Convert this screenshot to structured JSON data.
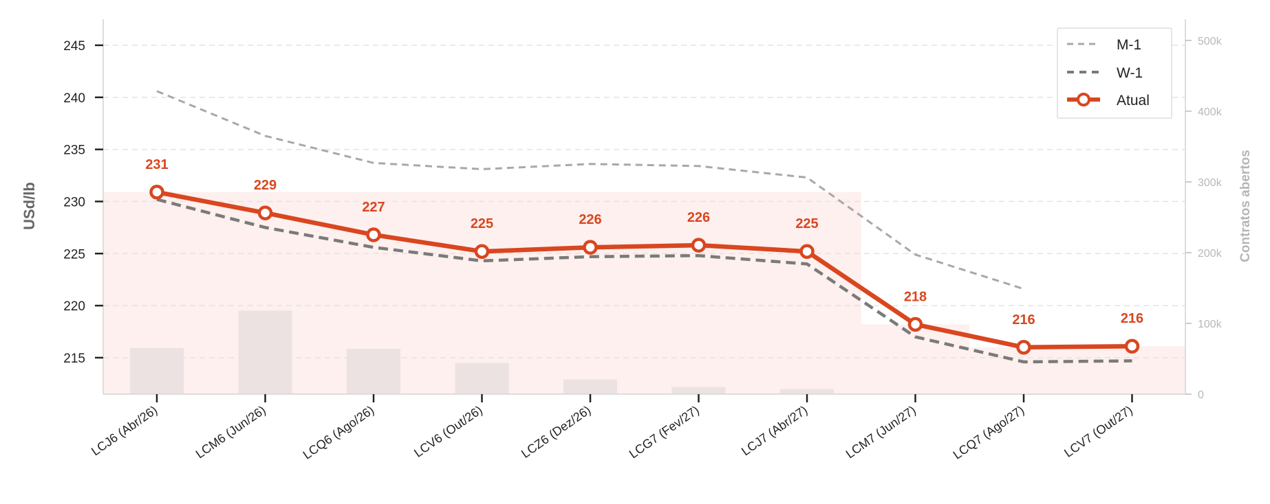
{
  "chart_data": {
    "type": "line",
    "ylabel": "USd/lb",
    "y2label": "Contratos abertos",
    "ylim": [
      211.5,
      247.5
    ],
    "y2lim": [
      0,
      530000
    ],
    "yticks": [
      215,
      220,
      225,
      230,
      235,
      240,
      245
    ],
    "y2ticks": [
      0,
      100000,
      200000,
      300000,
      400000,
      500000
    ],
    "y2ticklabels": [
      "0",
      "100k",
      "200k",
      "300k",
      "400k",
      "500k"
    ],
    "grid": true,
    "legend_position": "top-right",
    "categories": [
      "LCJ6 (Abr/26)",
      "LCM6 (Jun/26)",
      "LCQ6 (Ago/26)",
      "LCV6 (Out/26)",
      "LCZ6 (Dez/26)",
      "LCG7 (Fev/27)",
      "LCJ7 (Abr/27)",
      "LCM7 (Jun/27)",
      "LCQ7 (Ago/27)",
      "LCV7 (Out/27)"
    ],
    "series": [
      {
        "name": "M-1",
        "style": "dashed",
        "color": "#a8a8a8",
        "values": [
          240.6,
          236.3,
          233.7,
          233.1,
          233.6,
          233.4,
          232.3,
          224.9,
          221.6,
          null
        ]
      },
      {
        "name": "W-1",
        "style": "dashed",
        "color": "#7a7a7a",
        "values": [
          230.2,
          227.5,
          225.6,
          224.3,
          224.7,
          224.8,
          224.0,
          217.0,
          214.6,
          214.7
        ]
      },
      {
        "name": "Atual",
        "style": "solid-markers",
        "color": "#d9461f",
        "values": [
          230.9,
          228.9,
          226.8,
          225.2,
          225.6,
          225.8,
          225.2,
          218.2,
          216.0,
          216.1
        ]
      }
    ],
    "data_labels": [
      "231",
      "229",
      "227",
      "225",
      "226",
      "226",
      "225",
      "218",
      "216",
      "216"
    ],
    "open_interest": {
      "axis": "secondary",
      "color": "#ece2e2",
      "values": [
        65000,
        118000,
        64000,
        44000,
        21000,
        10000,
        7000,
        0,
        0,
        0
      ]
    },
    "band": {
      "color": "#fdf0ee",
      "upper": [
        230.9,
        230.9,
        230.9,
        230.9,
        230.9,
        230.9,
        230.9,
        218.2,
        216.0,
        216.1
      ]
    }
  }
}
